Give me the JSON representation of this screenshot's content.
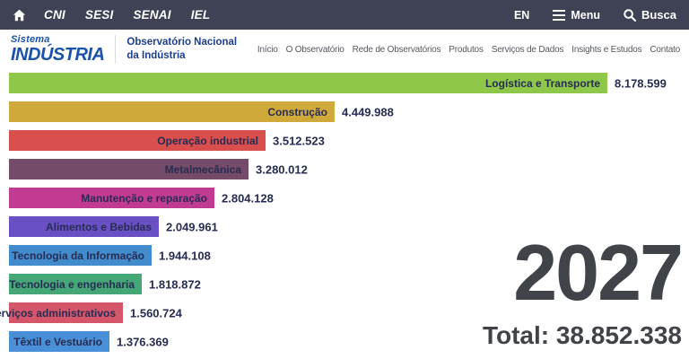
{
  "topbar": {
    "home_icon": "home-icon",
    "links": [
      "CNI",
      "SESI",
      "SENAI",
      "IEL"
    ],
    "lang": "EN",
    "menu_label": "Menu",
    "search_label": "Busca"
  },
  "header": {
    "logo_line1": "Sistema",
    "logo_line2": "INDÚSTRIA",
    "site_title_line1": "Observatório Nacional",
    "site_title_line2": "da Indústria",
    "nav": [
      "Início",
      "O Observatório",
      "Rede de Observatórios",
      "Produtos",
      "Serviços de Dados",
      "Insights e Estudos",
      "Contato"
    ]
  },
  "chart_data": {
    "type": "bar",
    "orientation": "horizontal",
    "title": "",
    "year": "2027",
    "total_label": "Total: 38.852.338",
    "xlim": [
      0,
      8178599
    ],
    "grid": false,
    "legend": "none",
    "categories": [
      "Logística e Transporte",
      "Construção",
      "Operação industrial",
      "Metalmecânica",
      "Manutenção e reparação",
      "Alimentos e Bebidas",
      "Tecnologia da Informação",
      "Tecnologia e engenharia",
      "Serviços administrativos",
      "Têxtil e Vestuário"
    ],
    "values": [
      8178599,
      4449988,
      3512523,
      3280012,
      2804128,
      2049961,
      1944108,
      1818872,
      1560724,
      1376369
    ],
    "value_labels": [
      "8.178.599",
      "4.449.988",
      "3.512.523",
      "3.280.012",
      "2.804.128",
      "2.049.961",
      "1.944.108",
      "1.818.872",
      "1.560.724",
      "1.376.369"
    ],
    "colors": [
      "#8fc74a",
      "#cfa93a",
      "#d94f4e",
      "#744b68",
      "#c23b92",
      "#6950c4",
      "#428bcd",
      "#45a678",
      "#d5566b",
      "#4a90d8"
    ],
    "label_text_color": "#272c52"
  },
  "colors": {
    "topbar_bg": "#3e4254",
    "logo_blue": "#1b52af",
    "title_blue": "#1d3e92",
    "year_gray": "#404348"
  }
}
